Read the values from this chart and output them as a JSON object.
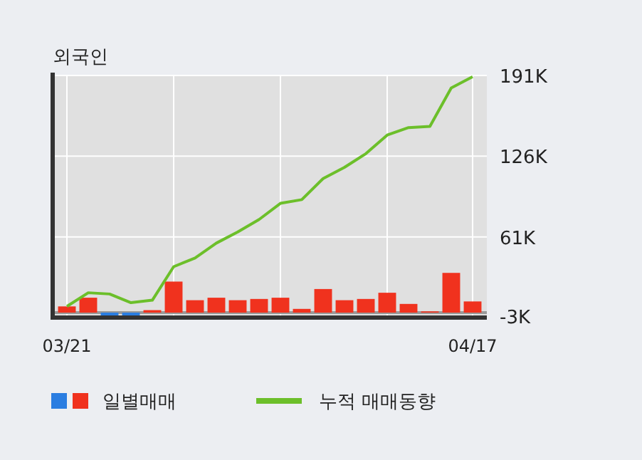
{
  "chart_data": {
    "type": "bar",
    "title": "외국인",
    "categories": [
      "03/21",
      null,
      null,
      null,
      null,
      null,
      null,
      null,
      null,
      null,
      null,
      null,
      null,
      null,
      null,
      null,
      null,
      null,
      null,
      "04/17"
    ],
    "series": [
      {
        "name": "일별매매",
        "values": [
          5,
          12,
          -3,
          -4,
          2,
          25,
          10,
          12,
          10,
          11,
          12,
          3,
          19,
          10,
          11,
          16,
          7,
          1,
          32,
          9
        ],
        "colors": [
          "#f0321e",
          "#f0321e",
          "#2a7de1",
          "#2a7de1",
          "#f0321e",
          "#f0321e",
          "#f0321e",
          "#f0321e",
          "#f0321e",
          "#f0321e",
          "#f0321e",
          "#f0321e",
          "#f0321e",
          "#f0321e",
          "#f0321e",
          "#f0321e",
          "#f0321e",
          "#f0321e",
          "#f0321e",
          "#f0321e"
        ]
      },
      {
        "name": "누적 매매동향",
        "type": "line",
        "color": "#6cbf2a",
        "values": [
          5,
          16,
          15,
          8,
          10,
          37,
          44,
          56,
          65,
          75,
          88,
          91,
          108,
          117,
          128,
          143,
          149,
          150,
          181,
          190
        ]
      }
    ],
    "ylim": [
      -4,
      191
    ],
    "yticks": [
      {
        "value": 191,
        "label": "191K"
      },
      {
        "value": 126,
        "label": "126K"
      },
      {
        "value": 61,
        "label": "61K"
      },
      {
        "value": -3,
        "label": "-3K"
      }
    ],
    "ref_lines": [
      {
        "axis": "y",
        "value": 0,
        "color": "#999999"
      }
    ],
    "grid": true,
    "legend": "bottom",
    "marker": "none",
    "line_style": "solid"
  }
}
